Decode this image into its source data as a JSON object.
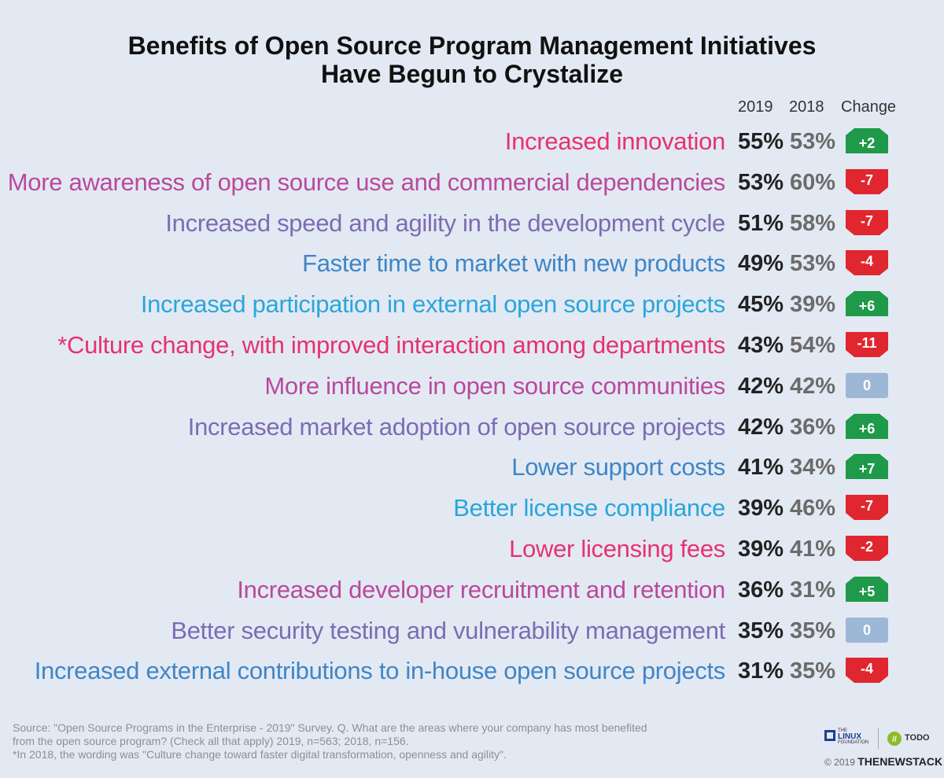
{
  "chart_data": {
    "type": "table",
    "title_line1": "Benefits of Open Source Program Management Initiatives",
    "title_line2": "Have Begun to Crystalize",
    "columns": [
      "2019",
      "2018",
      "Change"
    ],
    "rows": [
      {
        "label": "Increased innovation",
        "v2019": "55%",
        "v2018": "53%",
        "change": "+2",
        "dir": "up",
        "color": "#e5336f"
      },
      {
        "label": "More awareness of open source use and commercial dependencies",
        "v2019": "53%",
        "v2018": "60%",
        "change": "-7",
        "dir": "down",
        "color": "#b84a9c"
      },
      {
        "label": "Increased speed and agility in the development cycle",
        "v2019": "51%",
        "v2018": "58%",
        "change": "-7",
        "dir": "down",
        "color": "#7b6cb3"
      },
      {
        "label": "Faster time to market with new products",
        "v2019": "49%",
        "v2018": "53%",
        "change": "-4",
        "dir": "down",
        "color": "#3f86c6"
      },
      {
        "label": "Increased participation in external open source projects",
        "v2019": "45%",
        "v2018": "39%",
        "change": "+6",
        "dir": "up",
        "color": "#29a6dc"
      },
      {
        "label": "*Culture change, with improved interaction among departments",
        "v2019": "43%",
        "v2018": "54%",
        "change": "-11",
        "dir": "down",
        "color": "#e5336f"
      },
      {
        "label": "More influence in open source communities",
        "v2019": "42%",
        "v2018": "42%",
        "change": "0",
        "dir": "flat",
        "color": "#b84a9c"
      },
      {
        "label": "Increased market adoption of open source projects",
        "v2019": "42%",
        "v2018": "36%",
        "change": "+6",
        "dir": "up",
        "color": "#7b6cb3"
      },
      {
        "label": "Lower support costs",
        "v2019": "41%",
        "v2018": "34%",
        "change": "+7",
        "dir": "up",
        "color": "#3f86c6"
      },
      {
        "label": "Better license compliance",
        "v2019": "39%",
        "v2018": "46%",
        "change": "-7",
        "dir": "down",
        "color": "#29a6dc"
      },
      {
        "label": "Lower licensing fees",
        "v2019": "39%",
        "v2018": "41%",
        "change": "-2",
        "dir": "down",
        "color": "#e5336f"
      },
      {
        "label": "Increased developer recruitment and retention",
        "v2019": "36%",
        "v2018": "31%",
        "change": "+5",
        "dir": "up",
        "color": "#b84a9c"
      },
      {
        "label": "Better security testing and vulnerability management",
        "v2019": "35%",
        "v2018": "35%",
        "change": "0",
        "dir": "flat",
        "color": "#7b6cb3"
      },
      {
        "label": "Increased external contributions to in-house open source projects",
        "v2019": "31%",
        "v2018": "35%",
        "change": "-4",
        "dir": "down",
        "color": "#3f86c6"
      }
    ]
  },
  "colors": {
    "up": "#1e9a4a",
    "down": "#e0262e",
    "flat": "#9db7d6"
  },
  "footer": {
    "line1": "Source: \"Open Source Programs in the Enterprise - 2019\" Survey. Q. What are the areas where your company has most benefited",
    "line2": "from the open source program? (Check all that apply) 2019, n=563; 2018, n=156.",
    "line3": "*In 2018, the wording was \"Culture change toward faster digital transformation, openness and agility\"."
  },
  "brand": {
    "lf_small": "THE",
    "lf_big": "LINUX",
    "lf_sub": "FOUNDATION",
    "todo": "TODO",
    "copyright": "© 2019",
    "tns": "THENEWSTACK"
  }
}
